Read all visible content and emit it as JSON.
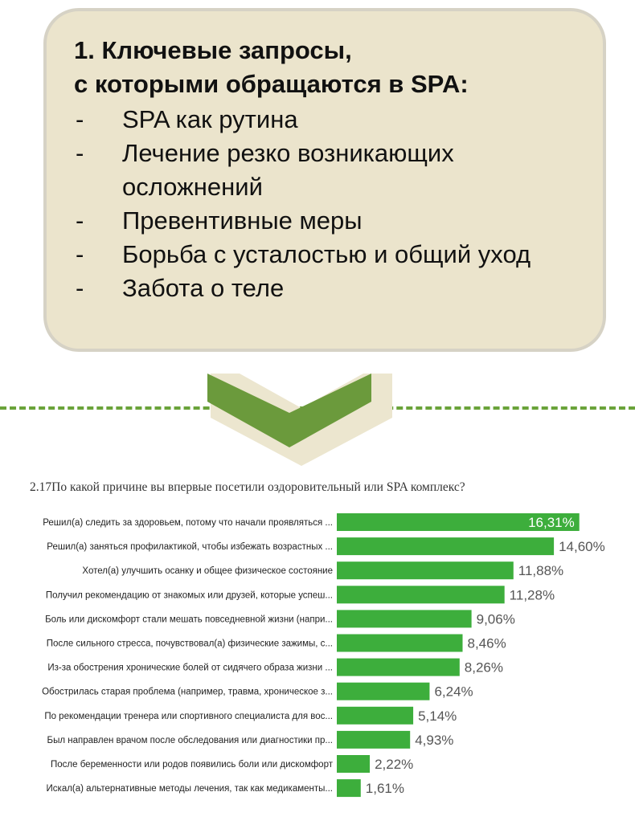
{
  "callout": {
    "title_line1": "1. Ключевые запросы,",
    "title_line2": "с которыми обращаются в SPA:",
    "items": [
      {
        "dash": "-",
        "text": "SPA как рутина"
      },
      {
        "dash": "-",
        "text": "Лечение резко возникающих осложнений"
      },
      {
        "dash": "-",
        "text": "Превентивные меры"
      },
      {
        "dash": "-",
        "text": "Борьба с усталостью и общий уход"
      },
      {
        "dash": "-",
        "text": "Забота о теле"
      }
    ]
  },
  "colors": {
    "callout_bg": "#ebe4cc",
    "chevron_dark": "#6b9a3c",
    "chevron_light": "#ece6cf",
    "divider": "#6aa33a",
    "bar": "#3dae3c"
  },
  "survey_title": "2.17По какой причине вы впервые посетили оздоровительный или SPA комплекс?",
  "chart_data": {
    "type": "bar",
    "orientation": "horizontal",
    "title": "2.17По какой причине вы впервые посетили оздоровительный или SPA комплекс?",
    "categories": [
      "Решил(а) следить за здоровьем, потому что начали проявляться ...",
      "Решил(а) заняться профилактикой, чтобы избежать возрастных ...",
      "Хотел(а) улучшить осанку и общее физическое состояние",
      "Получил рекомендацию от знакомых или друзей, которые успеш...",
      "Боль или дискомфорт стали мешать повседневной жизни (напри...",
      "После сильного стресса, почувствовал(а) физические зажимы, с...",
      "Из-за обострения хронические болей от сидячего образа жизни ...",
      "Обострилась старая проблема (например, травма, хроническое з...",
      "По рекомендации тренера или спортивного специалиста для вос...",
      "Был направлен врачом после обследования или диагностики пр...",
      "После беременности или родов появились боли или дискомфорт",
      "Искал(а) альтернативные методы лечения, так как медикаменты..."
    ],
    "values": [
      16.31,
      14.6,
      11.88,
      11.28,
      9.06,
      8.46,
      8.26,
      6.24,
      5.14,
      4.93,
      2.22,
      1.61
    ],
    "value_labels": [
      "16,31%",
      "14,60%",
      "11,88%",
      "11,28%",
      "9,06%",
      "8,46%",
      "8,26%",
      "6,24%",
      "5,14%",
      "4,93%",
      "2,22%",
      "1,61%"
    ],
    "unit": "%",
    "grid": false,
    "legend": "none"
  }
}
